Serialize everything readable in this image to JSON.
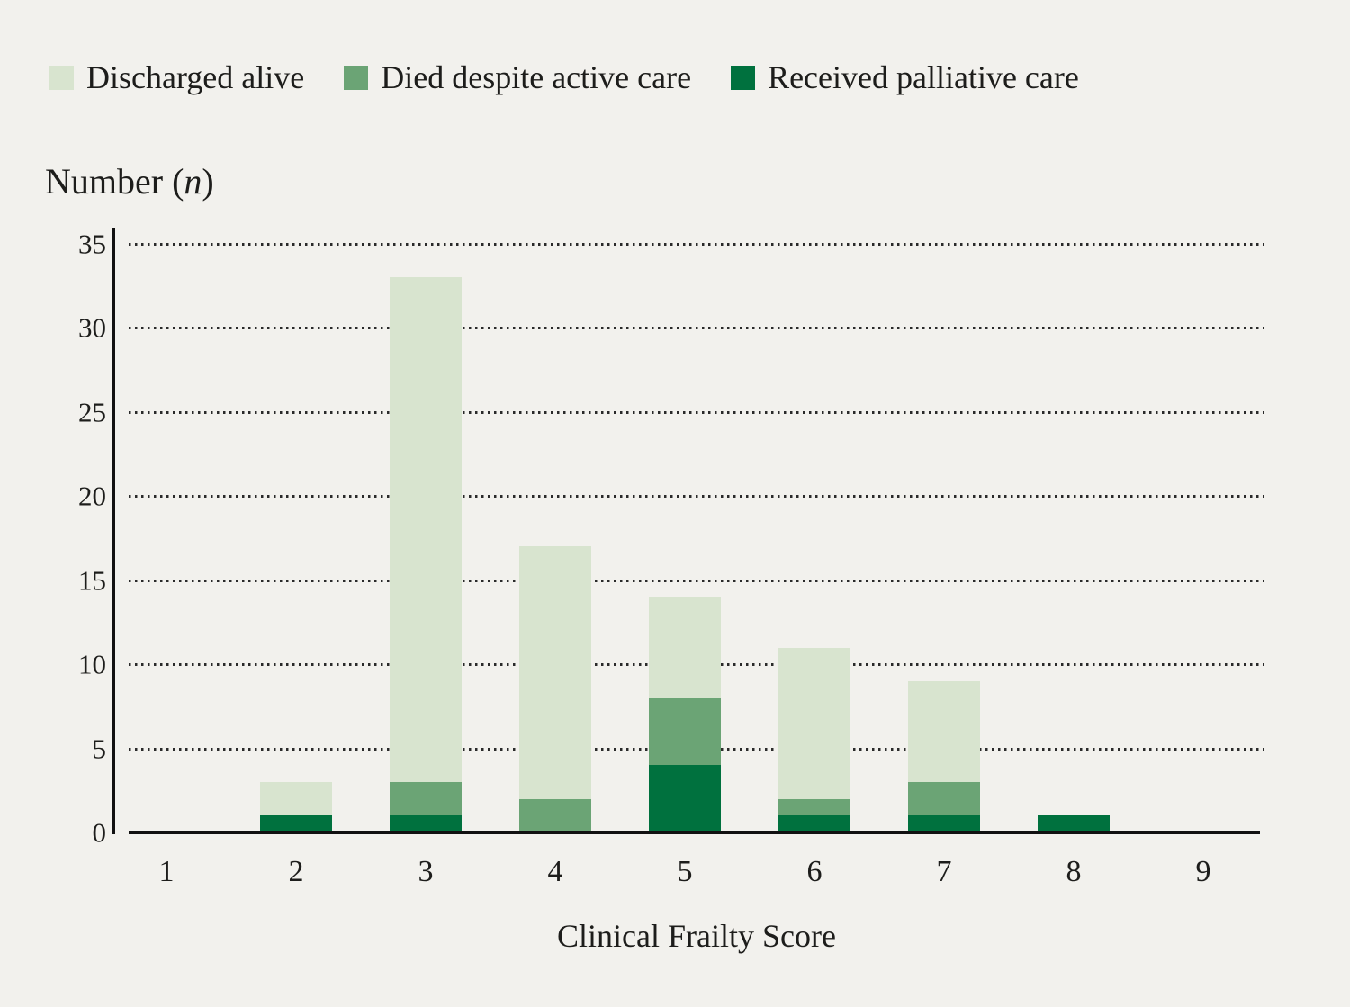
{
  "page": {
    "background_color": "#f2f1ed",
    "text_color": "#1d1d1b",
    "axis_color": "#111111"
  },
  "legend": {
    "items": [
      {
        "label": "Discharged alive",
        "color": "#d8e4cf"
      },
      {
        "label": "Died despite active care",
        "color": "#6ba475"
      },
      {
        "label": "Received palliative care",
        "color": "#00713e"
      }
    ]
  },
  "y_axis": {
    "title_prefix": "Number (",
    "title_var": "n",
    "title_suffix": ")",
    "ticks": [
      0,
      5,
      10,
      15,
      20,
      25,
      30,
      35
    ]
  },
  "x_axis": {
    "title": "Clinical Frailty Score"
  },
  "chart_data": {
    "type": "bar",
    "stacked": true,
    "title": "",
    "xlabel": "Clinical Frailty Score",
    "ylabel": "Number (n)",
    "ylim": [
      0,
      35
    ],
    "ytick_step": 5,
    "grid": "dotted horizontal gridlines at every 5 units",
    "legend_position": "top-left",
    "categories": [
      "1",
      "2",
      "3",
      "4",
      "5",
      "6",
      "7",
      "8",
      "9"
    ],
    "stack_order_bottom_to_top": [
      "Received palliative care",
      "Died despite active care",
      "Discharged alive"
    ],
    "series": [
      {
        "name": "Received palliative care",
        "color": "#00713e",
        "values": [
          0,
          1,
          1,
          0,
          4,
          1,
          1,
          1,
          0
        ]
      },
      {
        "name": "Died despite active care",
        "color": "#6ba475",
        "values": [
          0,
          0,
          2,
          2,
          4,
          1,
          2,
          0,
          0
        ]
      },
      {
        "name": "Discharged alive",
        "color": "#d8e4cf",
        "values": [
          0,
          2,
          30,
          15,
          6,
          9,
          6,
          0,
          0
        ]
      }
    ],
    "totals": [
      0,
      3,
      33,
      17,
      14,
      11,
      9,
      1,
      0
    ]
  }
}
